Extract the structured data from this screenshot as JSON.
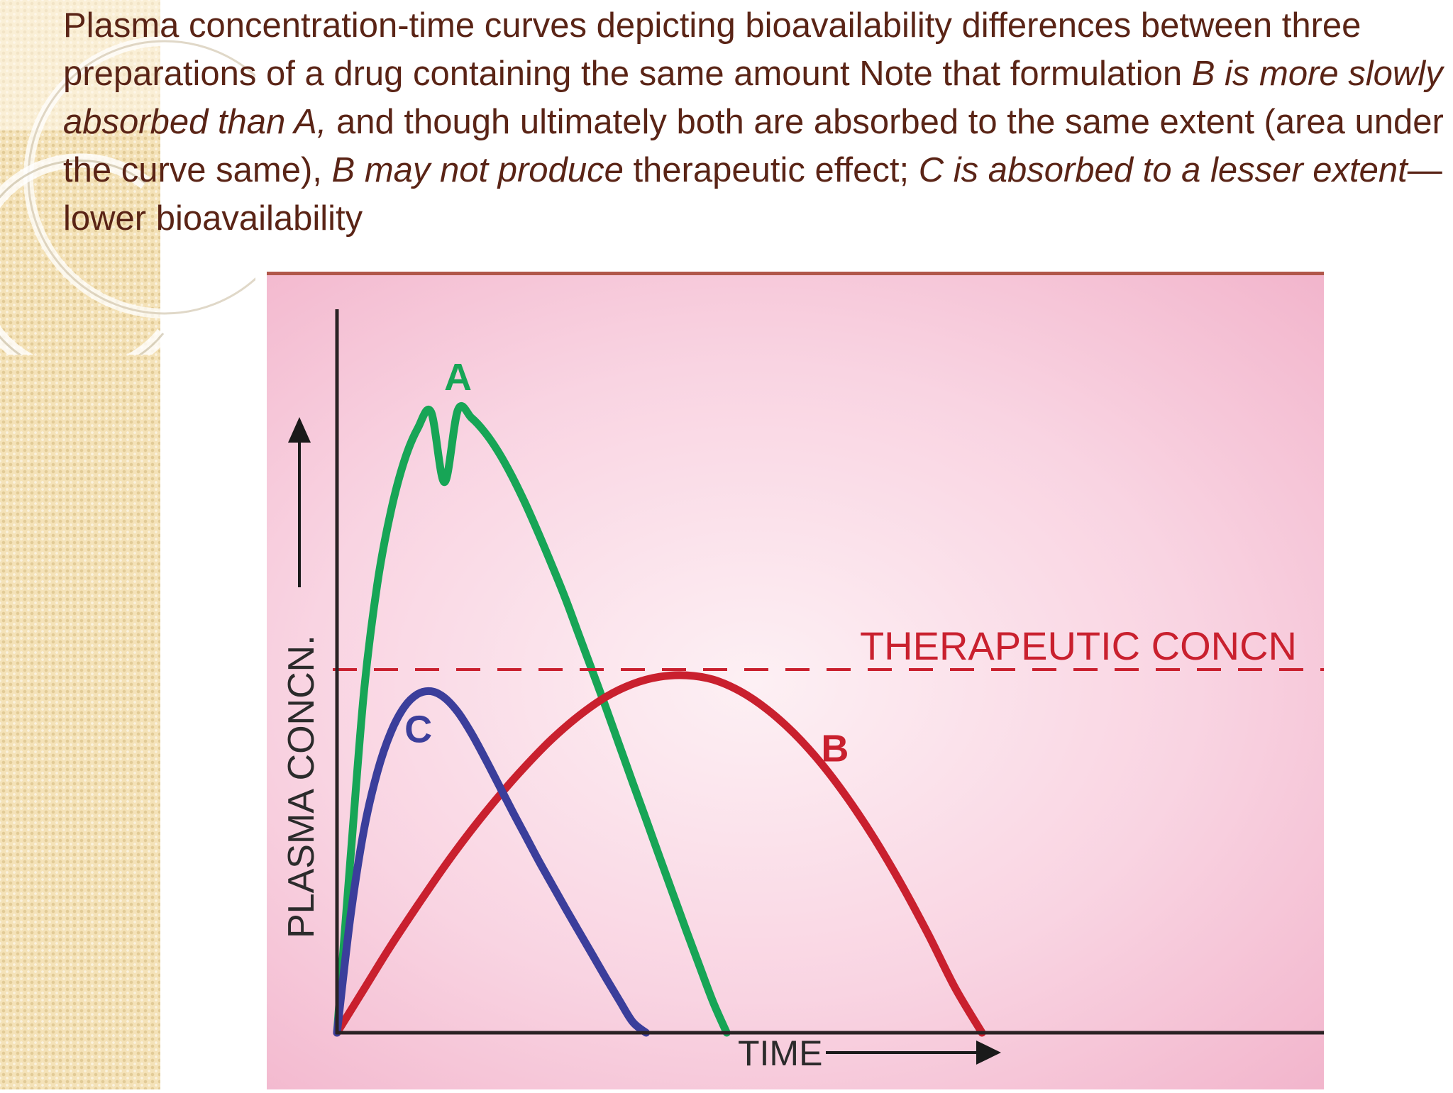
{
  "slide": {
    "text_parts": [
      {
        "text": "Plasma concentration-time curves depicting bioavailability differences between three preparations of a drug containing the same amount Note that formulation ",
        "italic": false
      },
      {
        "text": "B is more slowly absorbed than A,",
        "italic": true
      },
      {
        "text": " and though ultimately both are absorbed to the same extent (area under the curve same), ",
        "italic": false
      },
      {
        "text": "B may not produce",
        "italic": true
      },
      {
        "text": " therapeutic effect; ",
        "italic": false
      },
      {
        "text": "C is absorbed to a lesser extent",
        "italic": true
      },
      {
        "text": "— lower bioavailability",
        "italic": false
      }
    ]
  },
  "colors": {
    "text": "#5a2416",
    "sidebar": "#f4e2b8",
    "panel": "#f9d4e2",
    "axis": "#2a2224",
    "series_a": "#17a556",
    "series_b": "#c9202e",
    "series_c": "#3b3e9b",
    "threshold": "#c9202e"
  },
  "chart_data": {
    "type": "line",
    "title": "",
    "xlabel": "TIME",
    "ylabel": "PLASMA CONCN.",
    "xlim": [
      0,
      100
    ],
    "ylim": [
      0,
      100
    ],
    "grid": false,
    "axis_ticks": false,
    "threshold": {
      "label": "THERAPEUTIC CONCN",
      "y": 50.2,
      "style": "dashed"
    },
    "series": [
      {
        "name": "A",
        "color": "#17a556",
        "x": [
          0,
          2,
          4,
          6,
          8,
          10,
          12,
          14,
          16,
          18,
          20,
          22,
          24,
          26,
          28,
          30,
          32,
          34,
          36,
          38,
          40,
          42,
          44,
          46,
          48,
          50,
          52,
          54,
          56,
          58,
          60,
          62,
          64,
          66,
          68,
          70,
          72,
          74,
          76,
          77.6
        ],
        "y": [
          0,
          24,
          47,
          62,
          72,
          79,
          83.5,
          85.8,
          76.1,
          86.1,
          85.0,
          83.0,
          80.3,
          77.0,
          73.2,
          69.0,
          64.6,
          60.0,
          55.0,
          50.0,
          45.0,
          39.8,
          34.6,
          29.5,
          24.3,
          19.2,
          14.1,
          9.1,
          4.2,
          0,
          null,
          null,
          null,
          null,
          null,
          null,
          null,
          null,
          null,
          null
        ]
      },
      {
        "name": "B",
        "color": "#c9202e",
        "x": [
          0,
          4,
          8,
          12,
          16,
          20,
          24,
          28,
          32,
          36,
          40,
          44,
          48,
          52,
          56,
          60,
          64,
          68,
          72,
          76,
          80,
          84,
          88,
          92,
          96,
          100,
          104
        ],
        "y": [
          0,
          6,
          12,
          17.6,
          23,
          28,
          32.6,
          36.8,
          40.6,
          43.8,
          46.4,
          48.2,
          49.2,
          49.4,
          48.8,
          47.2,
          44.7,
          41.4,
          37.3,
          32.4,
          26.8,
          20.5,
          13.6,
          6.2,
          0,
          null,
          null
        ]
      },
      {
        "name": "C",
        "color": "#3b3e9b",
        "x": [
          0,
          2,
          4,
          6,
          8,
          10,
          12,
          14,
          16,
          18,
          20,
          22,
          24,
          26,
          28,
          30,
          32,
          34,
          36,
          38,
          40,
          42,
          44,
          46,
          48,
          50,
          52,
          54,
          56,
          57.3
        ],
        "y": [
          0,
          16,
          28,
          36,
          41.5,
          45,
          46.8,
          47.2,
          46.3,
          44.3,
          41.4,
          38.0,
          34.4,
          30.8,
          27.3,
          23.8,
          20.5,
          17.2,
          14.0,
          10.8,
          7.6,
          4.5,
          1.5,
          0,
          null,
          null,
          null,
          null,
          null,
          null
        ]
      }
    ]
  }
}
